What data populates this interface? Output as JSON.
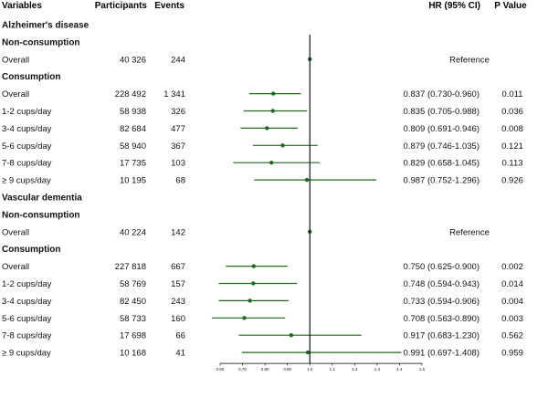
{
  "headers": {
    "variables": "Variables",
    "participants": "Participants",
    "events": "Events",
    "hr": "HR (95% CI)",
    "p": "P Value"
  },
  "colors": {
    "ci": "#1e6a1e",
    "point": "#1e6a1e",
    "refline": "#000000",
    "text": "#111111"
  },
  "chart_data": {
    "type": "forest",
    "xlabel": "",
    "xlim": [
      0.6,
      1.5
    ],
    "x_ticks": [
      "0.60",
      "0.70",
      "0.80",
      "0.90",
      "1.0",
      "1.1",
      "1.2",
      "1.3",
      "1.4",
      "1.5"
    ],
    "x_tick_values": [
      0.6,
      0.7,
      0.8,
      0.9,
      1.0,
      1.1,
      1.2,
      1.3,
      1.4,
      1.5
    ],
    "reference_value": 1.0,
    "rows": [
      {
        "kind": "section",
        "label": "Alzheimer's disease"
      },
      {
        "kind": "group",
        "label": "Non-consumption"
      },
      {
        "kind": "data",
        "label": "Overall",
        "participants": "40 326",
        "events": "244",
        "hr": 1.0,
        "lo": 1.0,
        "hi": 1.0,
        "hr_text": "Reference",
        "p": ""
      },
      {
        "kind": "group",
        "label": "Consumption"
      },
      {
        "kind": "data",
        "label": "Overall",
        "participants": "228 492",
        "events": "1 341",
        "hr": 0.837,
        "lo": 0.73,
        "hi": 0.96,
        "hr_text": "0.837 (0.730-0.960)",
        "p": "0.011"
      },
      {
        "kind": "data",
        "label": "1-2 cups/day",
        "participants": "58 938",
        "events": "326",
        "hr": 0.835,
        "lo": 0.705,
        "hi": 0.988,
        "hr_text": "0.835 (0.705-0.988)",
        "p": "0.036"
      },
      {
        "kind": "data",
        "label": "3-4 cups/day",
        "participants": "82 684",
        "events": "477",
        "hr": 0.809,
        "lo": 0.691,
        "hi": 0.946,
        "hr_text": "0.809 (0.691-0.946)",
        "p": "0.008"
      },
      {
        "kind": "data",
        "label": "5-6 cups/day",
        "participants": "58 940",
        "events": "367",
        "hr": 0.879,
        "lo": 0.746,
        "hi": 1.035,
        "hr_text": "0.879 (0.746-1.035)",
        "p": "0.121"
      },
      {
        "kind": "data",
        "label": "7-8 cups/day",
        "participants": "17 735",
        "events": "103",
        "hr": 0.829,
        "lo": 0.658,
        "hi": 1.045,
        "hr_text": "0.829 (0.658-1.045)",
        "p": "0.113"
      },
      {
        "kind": "data",
        "label": "≥ 9 cups/day",
        "participants": "10 195",
        "events": "68",
        "hr": 0.987,
        "lo": 0.752,
        "hi": 1.296,
        "hr_text": "0.987 (0.752-1.296)",
        "p": "0.926"
      },
      {
        "kind": "section",
        "label": "Vascular dementia"
      },
      {
        "kind": "group",
        "label": "Non-consumption"
      },
      {
        "kind": "data",
        "label": "Overall",
        "participants": "40 224",
        "events": "142",
        "hr": 1.0,
        "lo": 1.0,
        "hi": 1.0,
        "hr_text": "Reference",
        "p": ""
      },
      {
        "kind": "group",
        "label": "Consumption"
      },
      {
        "kind": "data",
        "label": "Overall",
        "participants": "227 818",
        "events": "667",
        "hr": 0.75,
        "lo": 0.625,
        "hi": 0.9,
        "hr_text": "0.750 (0.625-0.900)",
        "p": "0.002"
      },
      {
        "kind": "data",
        "label": "1-2 cups/day",
        "participants": "58 769",
        "events": "157",
        "hr": 0.748,
        "lo": 0.594,
        "hi": 0.943,
        "hr_text": "0.748 (0.594-0.943)",
        "p": "0.014"
      },
      {
        "kind": "data",
        "label": "3-4 cups/day",
        "participants": "82 450",
        "events": "243",
        "hr": 0.733,
        "lo": 0.594,
        "hi": 0.906,
        "hr_text": "0.733 (0.594-0.906)",
        "p": "0.004"
      },
      {
        "kind": "data",
        "label": "5-6 cups/day",
        "participants": "58 733",
        "events": "160",
        "hr": 0.708,
        "lo": 0.563,
        "hi": 0.89,
        "hr_text": "0.708 (0.563-0.890)",
        "p": "0.003"
      },
      {
        "kind": "data",
        "label": "7-8 cups/day",
        "participants": "17 698",
        "events": "66",
        "hr": 0.917,
        "lo": 0.683,
        "hi": 1.23,
        "hr_text": "0.917 (0.683-1.230)",
        "p": "0.562"
      },
      {
        "kind": "data",
        "label": "≥ 9 cups/day",
        "participants": "10 168",
        "events": "41",
        "hr": 0.991,
        "lo": 0.697,
        "hi": 1.408,
        "hr_text": "0.991 (0.697-1.408)",
        "p": "0.959"
      }
    ]
  }
}
